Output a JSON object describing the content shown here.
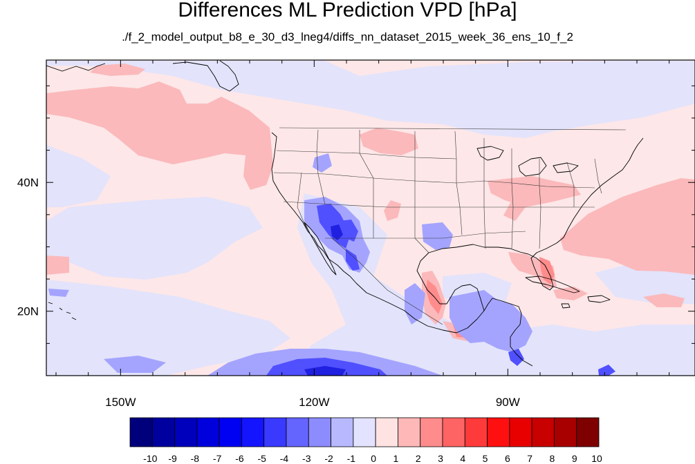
{
  "title": "Differences ML Prediction VPD [hPa]",
  "subtitle": "./f_2_model_output_b8_e_30_d3_lneg4/diffs_nn_dataset_2015_week_36_ens_10_f_2",
  "map": {
    "lon_range": [
      -161.5,
      -61.0
    ],
    "lat_range": [
      10.0,
      59.0
    ],
    "x_ticks": [
      {
        "lon": -150,
        "label": "150W"
      },
      {
        "lon": -120,
        "label": "120W"
      },
      {
        "lon": -90,
        "label": "90W"
      }
    ],
    "y_ticks": [
      {
        "lat": 40,
        "label": "40N"
      },
      {
        "lat": 20,
        "label": "20N"
      }
    ],
    "background_color": "#fde7e8"
  },
  "colorbar": {
    "labels": [
      "-10",
      "-9",
      "-8",
      "-7",
      "-6",
      "-5",
      "-4",
      "-3",
      "-2",
      "-1",
      "0",
      "1",
      "2",
      "3",
      "4",
      "5",
      "6",
      "7",
      "8",
      "9",
      "10"
    ],
    "colors": [
      "#00007d",
      "#00009e",
      "#0000bc",
      "#0000dc",
      "#0000f2",
      "#1414ff",
      "#3a3aff",
      "#6464ff",
      "#8c8cff",
      "#b8b8ff",
      "#e3e3ff",
      "#ffe3e3",
      "#ffb8b8",
      "#ff8c8c",
      "#ff6464",
      "#ff3a3a",
      "#ff1010",
      "#e80000",
      "#c80000",
      "#a80000",
      "#7f0000"
    ]
  }
}
